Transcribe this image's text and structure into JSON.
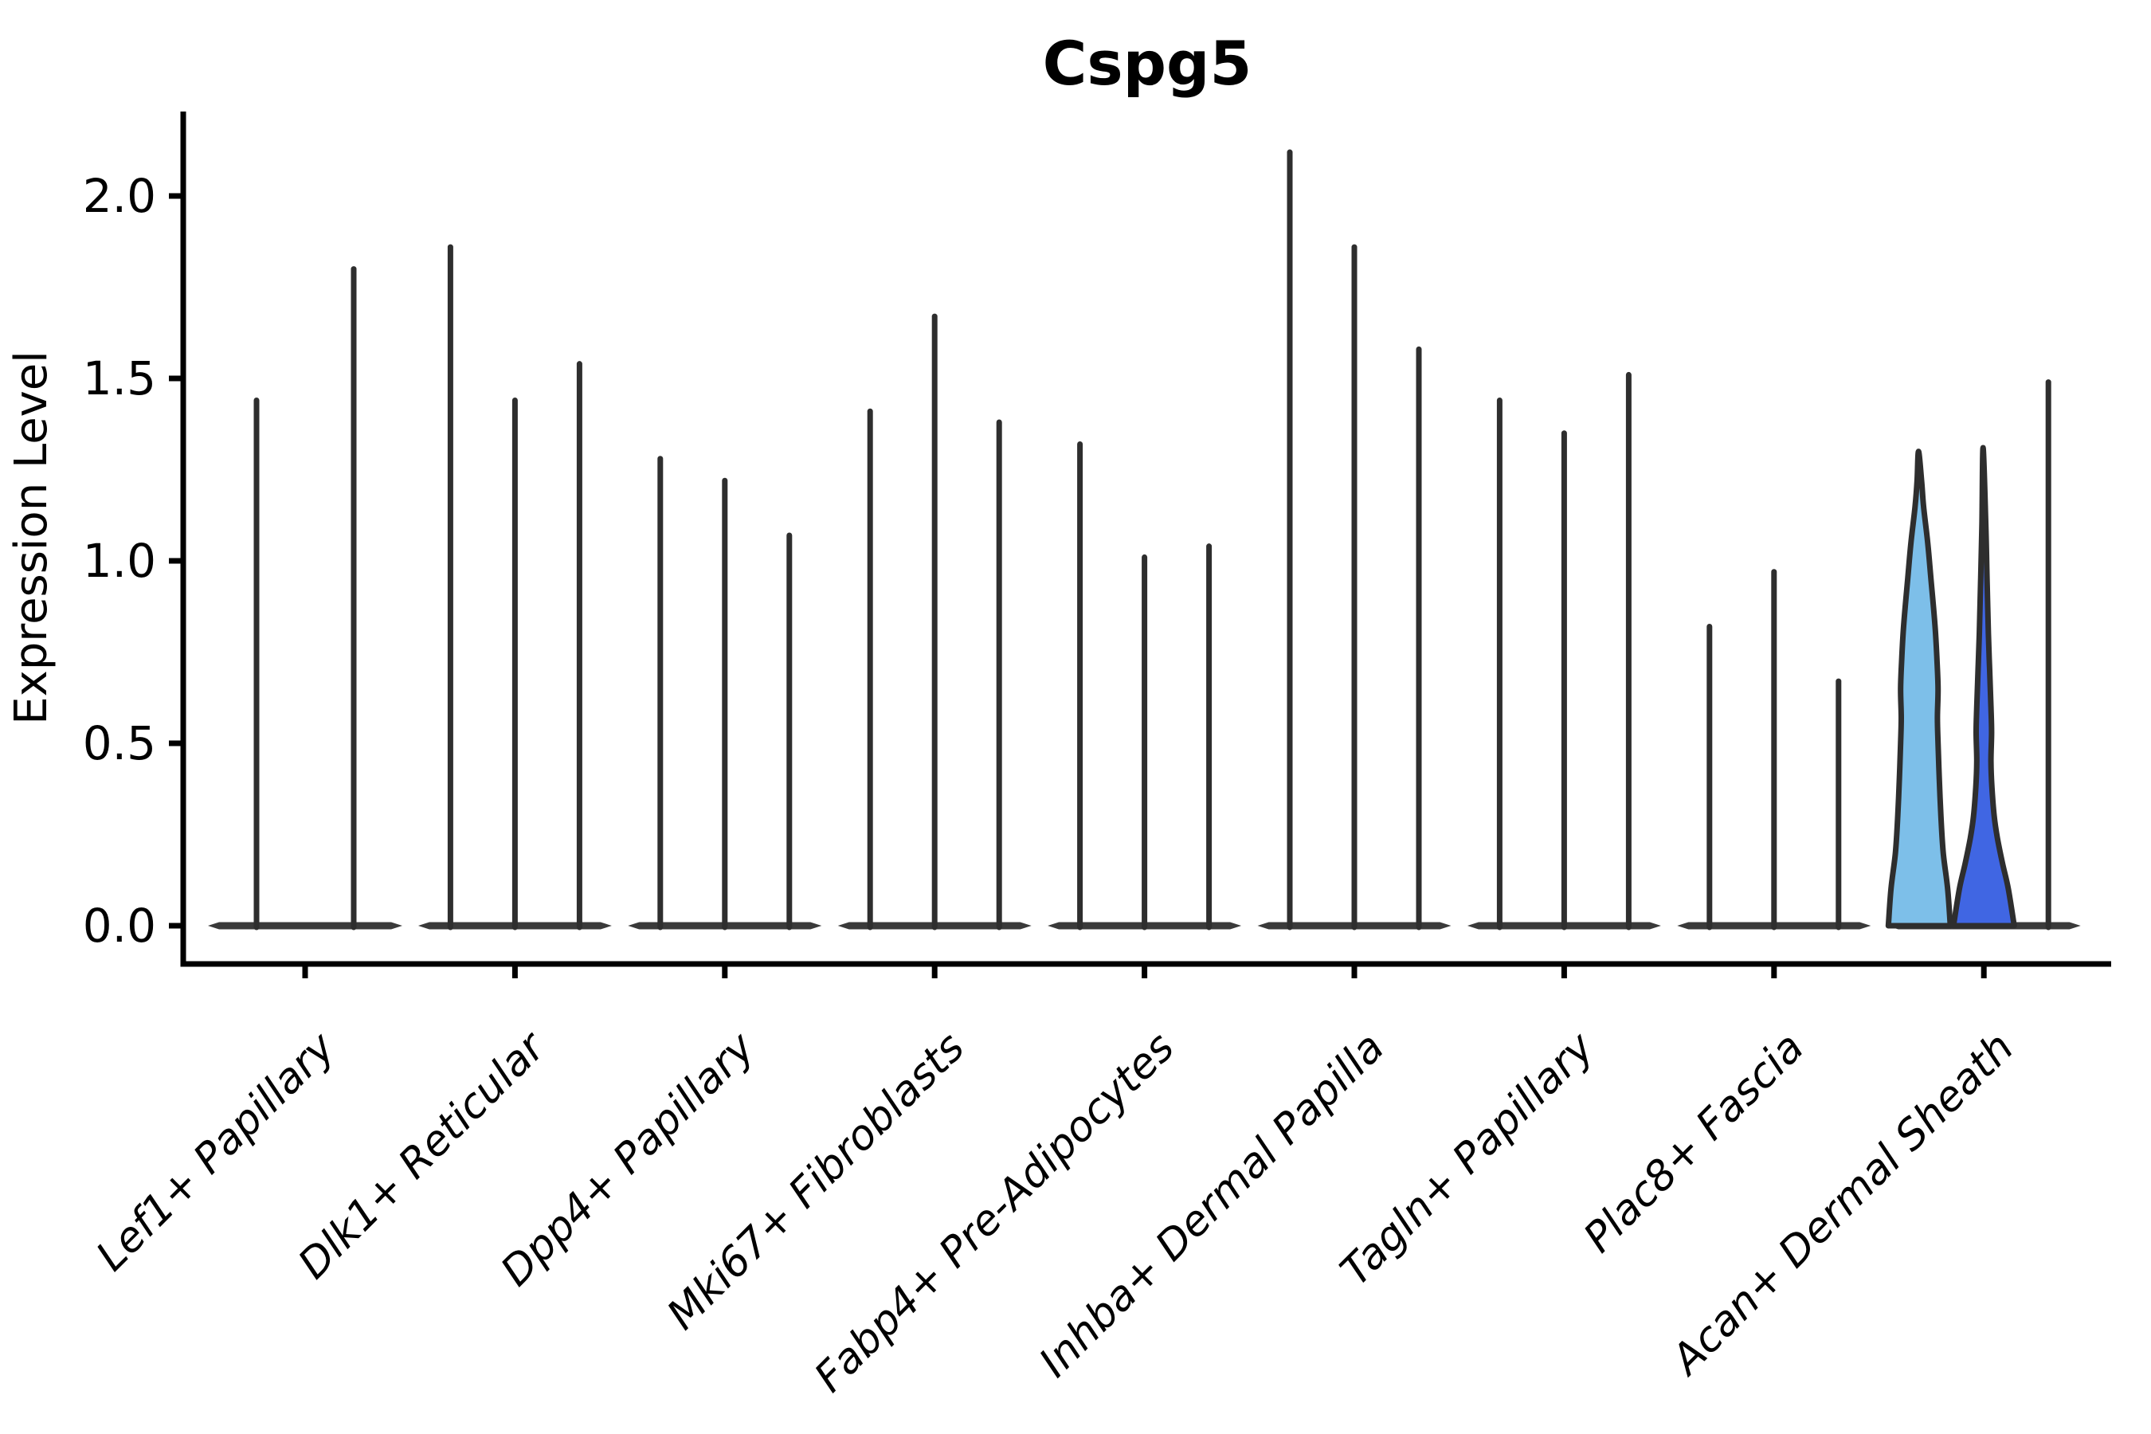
{
  "colors": {
    "background": "#FFFFFF",
    "axis": "#000000",
    "violin_outline": "#2E2E2E",
    "spike": "#2E2E2E",
    "zero_density_bar": "#3A3A3A",
    "acan_violin_light": "#7DBFE9",
    "acan_violin_dark": "#4066E3"
  },
  "chart_data": {
    "type": "violin",
    "title": "Cspg5",
    "xlabel": "",
    "ylabel": "Expression Level",
    "yticks": [
      0.0,
      0.5,
      1.0,
      1.5,
      2.0
    ],
    "ytick_labels": [
      "0.0",
      "0.5",
      "1.0",
      "1.5",
      "2.0"
    ],
    "ylim": [
      -0.1,
      2.23
    ],
    "grid": false,
    "legend": "none",
    "categories": [
      "Lef1+ Papillary",
      "Dlk1+ Reticular",
      "Dpp4+ Papillary",
      "Mki67+ Fibroblasts",
      "Fabp4+ Pre-Adipocytes",
      "Inhba+ Dermal Papilla",
      "Tagln+ Papillary",
      "Plac8+ Fascia",
      "Acan+ Dermal Sheath"
    ],
    "groups": [
      {
        "label": "Lef1+ Papillary",
        "violins": [
          {
            "max": 1.44,
            "shape": "spike"
          },
          {
            "max": 1.8,
            "shape": "spike"
          }
        ]
      },
      {
        "label": "Dlk1+ Reticular",
        "violins": [
          {
            "max": 1.86,
            "shape": "spike"
          },
          {
            "max": 1.44,
            "shape": "spike"
          },
          {
            "max": 1.54,
            "shape": "spike"
          }
        ]
      },
      {
        "label": "Dpp4+ Papillary",
        "violins": [
          {
            "max": 1.28,
            "shape": "spike"
          },
          {
            "max": 1.22,
            "shape": "spike"
          },
          {
            "max": 1.07,
            "shape": "spike"
          }
        ]
      },
      {
        "label": "Mki67+ Fibroblasts",
        "violins": [
          {
            "max": 1.41,
            "shape": "spike"
          },
          {
            "max": 1.67,
            "shape": "spike"
          },
          {
            "max": 1.38,
            "shape": "spike"
          }
        ]
      },
      {
        "label": "Fabp4+ Pre-Adipocytes",
        "violins": [
          {
            "max": 1.32,
            "shape": "spike"
          },
          {
            "max": 1.01,
            "shape": "spike"
          },
          {
            "max": 1.04,
            "shape": "spike"
          }
        ]
      },
      {
        "label": "Inhba+ Dermal Papilla",
        "violins": [
          {
            "max": 2.12,
            "shape": "spike"
          },
          {
            "max": 1.86,
            "shape": "spike"
          },
          {
            "max": 1.58,
            "shape": "spike"
          }
        ]
      },
      {
        "label": "Tagln+ Papillary",
        "violins": [
          {
            "max": 1.44,
            "shape": "spike"
          },
          {
            "max": 1.35,
            "shape": "spike"
          },
          {
            "max": 1.51,
            "shape": "spike"
          }
        ]
      },
      {
        "label": "Plac8+ Fascia",
        "violins": [
          {
            "max": 0.82,
            "shape": "spike"
          },
          {
            "max": 0.97,
            "shape": "spike"
          },
          {
            "max": 0.67,
            "shape": "spike"
          }
        ]
      },
      {
        "label": "Acan+ Dermal Sheath",
        "violins": [
          {
            "max": 1.3,
            "shape": "violin",
            "fill": "#7DBFE9",
            "profile": [
              [
                0,
                0.96
              ],
              [
                0.1,
                0.88
              ],
              [
                0.2,
                0.74
              ],
              [
                0.3,
                0.67
              ],
              [
                0.4,
                0.62
              ],
              [
                0.5,
                0.58
              ],
              [
                0.57,
                0.56
              ],
              [
                0.65,
                0.58
              ],
              [
                0.74,
                0.54
              ],
              [
                0.83,
                0.48
              ],
              [
                0.95,
                0.36
              ],
              [
                1.05,
                0.26
              ],
              [
                1.15,
                0.13
              ],
              [
                1.22,
                0.07
              ],
              [
                1.3,
                0.025
              ]
            ]
          },
          {
            "max": 1.31,
            "shape": "violin",
            "fill": "#4066E3",
            "profile": [
              [
                0,
                0.94
              ],
              [
                0.1,
                0.76
              ],
              [
                0.17,
                0.58
              ],
              [
                0.24,
                0.42
              ],
              [
                0.3,
                0.32
              ],
              [
                0.38,
                0.25
              ],
              [
                0.45,
                0.22
              ],
              [
                0.53,
                0.24
              ],
              [
                0.6,
                0.22
              ],
              [
                0.7,
                0.18
              ],
              [
                0.8,
                0.14
              ],
              [
                0.94,
                0.1
              ],
              [
                1.1,
                0.06
              ],
              [
                1.31,
                0.025
              ]
            ]
          },
          {
            "max": 1.49,
            "shape": "spike"
          }
        ]
      }
    ]
  }
}
